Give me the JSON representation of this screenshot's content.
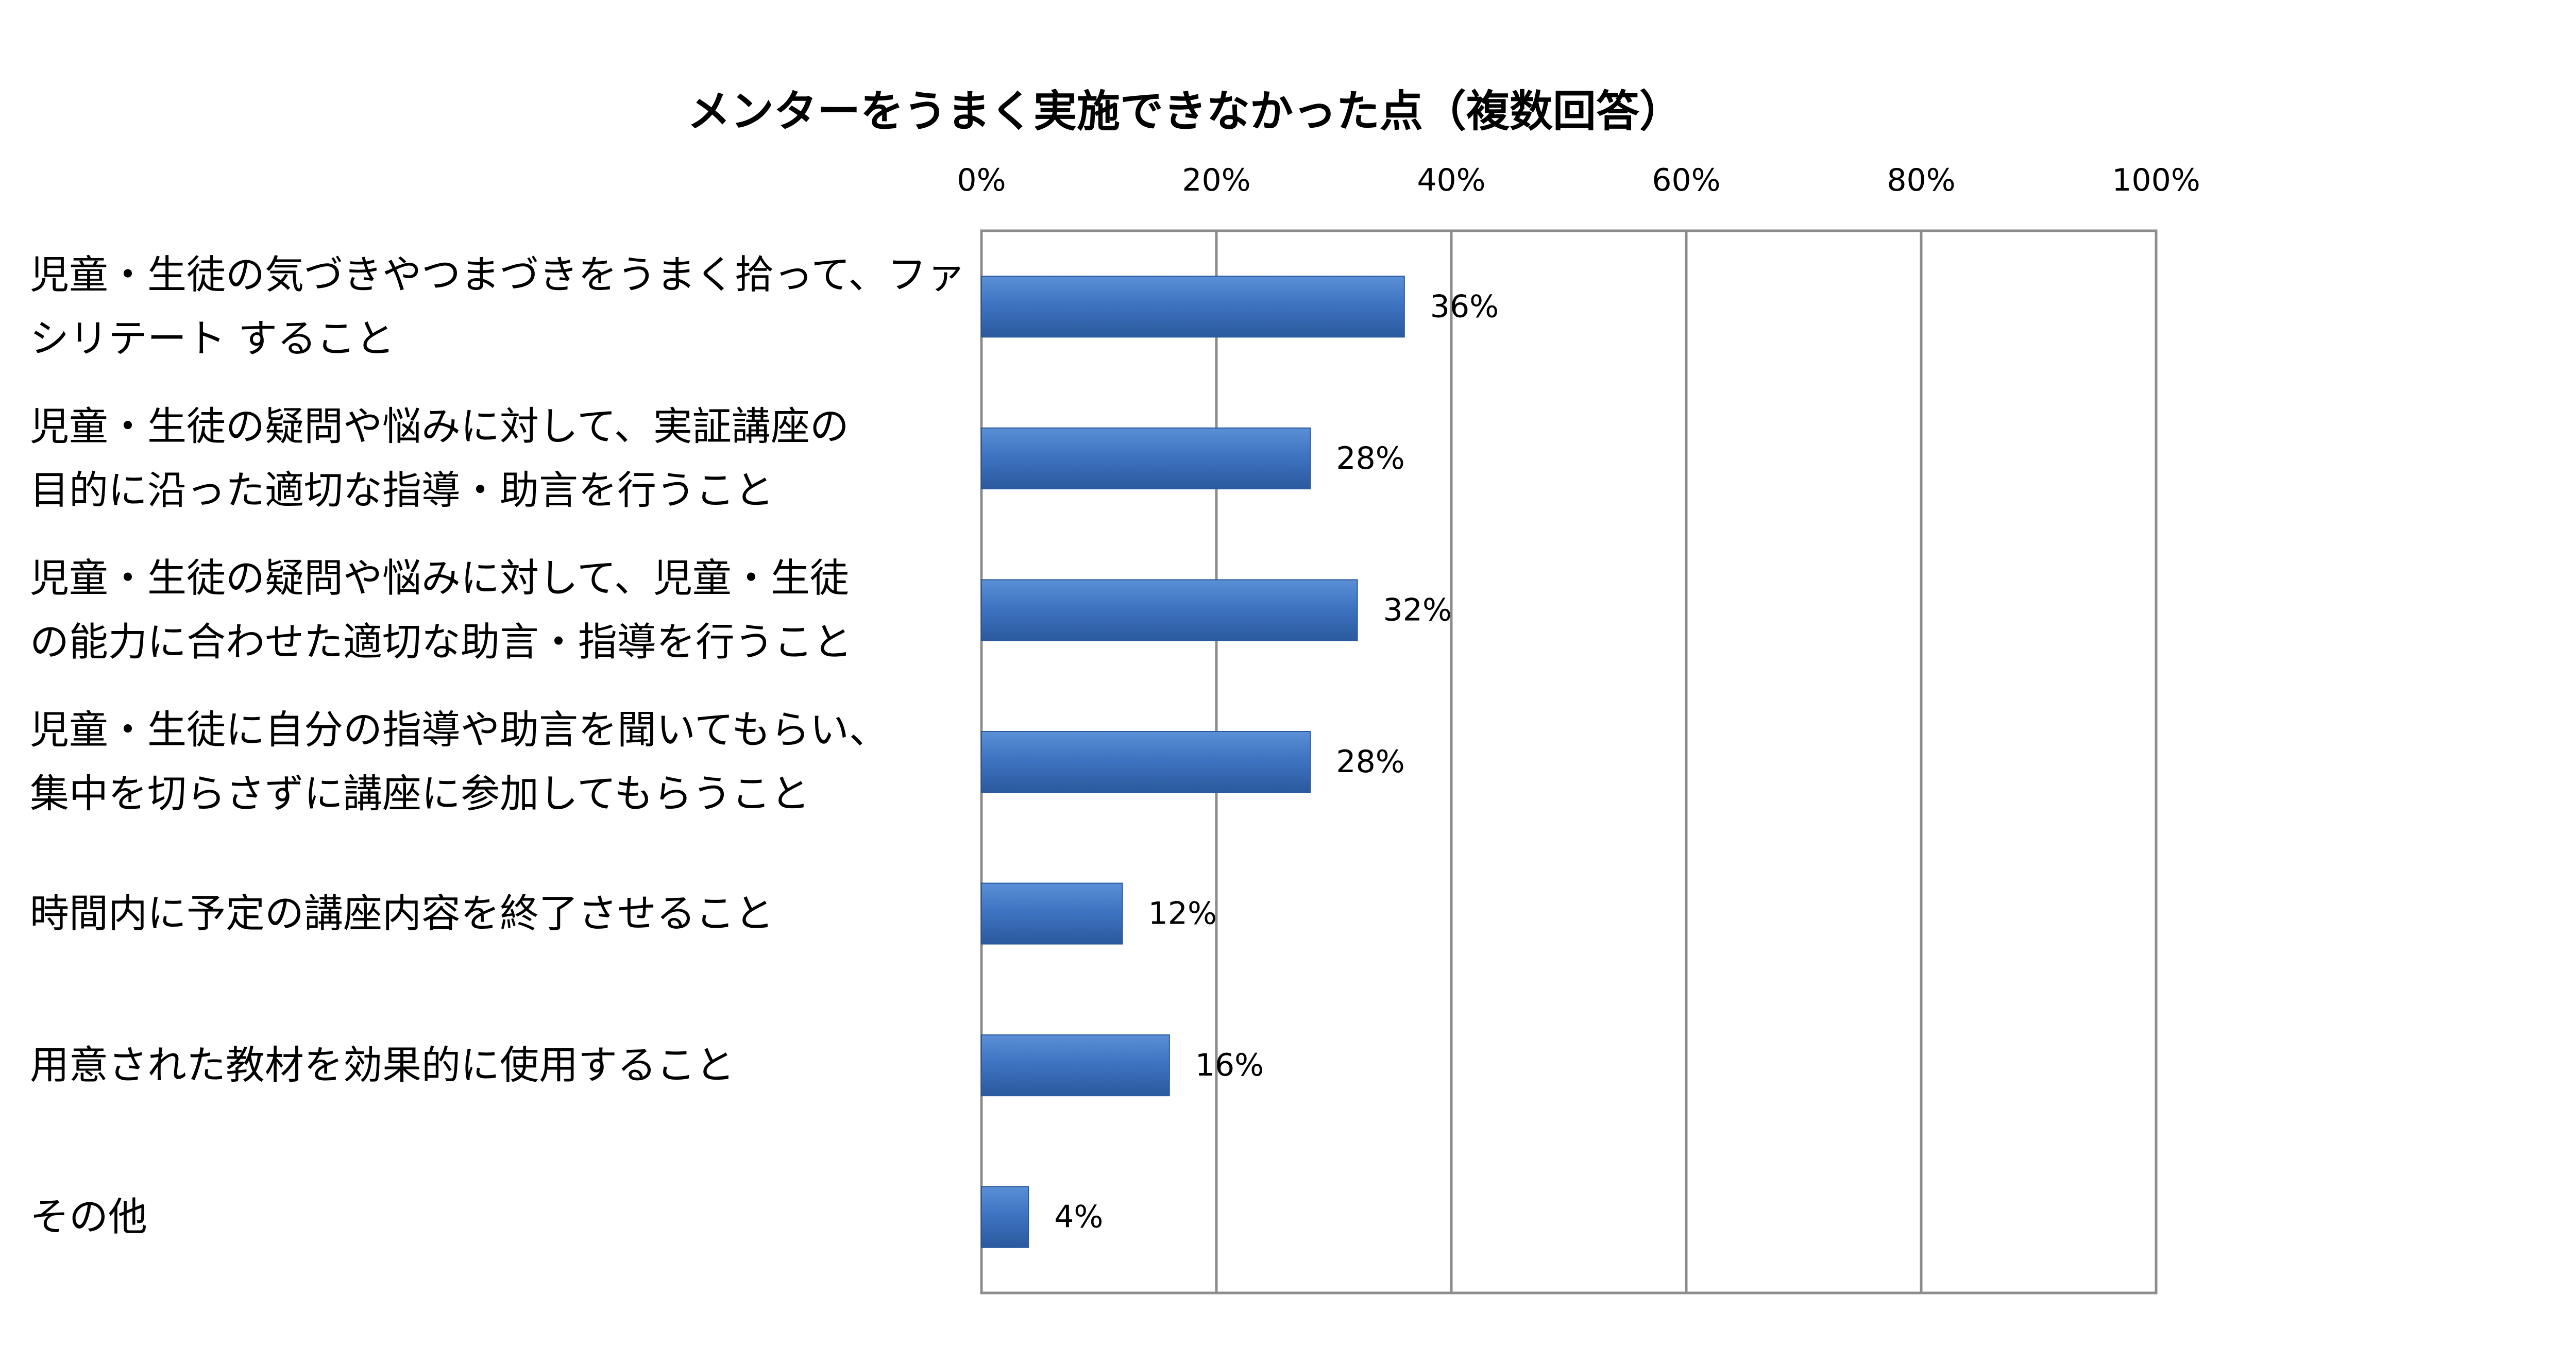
{
  "chart_data": {
    "type": "bar",
    "orientation": "horizontal",
    "title": "メンターをうまく実施できなかった点（複数回答）",
    "xlabel": "",
    "ylabel": "",
    "xlim": [
      0,
      100
    ],
    "x_ticks": [
      "0%",
      "20%",
      "40%",
      "60%",
      "80%",
      "100%"
    ],
    "grid": true,
    "legend": "none",
    "bar_color": "#3e74c2",
    "categories": [
      [
        "児童・生徒の気づきやつまづきをうまく拾って、ファ",
        "シリテート すること"
      ],
      [
        "児童・生徒の疑問や悩みに対して、実証講座の",
        "目的に沿った適切な指導・助言を行うこと"
      ],
      [
        "児童・生徒の疑問や悩みに対して、児童・生徒",
        "の能力に合わせた適切な助言・指導を行うこと"
      ],
      [
        "児童・生徒に自分の指導や助言を聞いてもらい、",
        "集中を切らさずに講座に参加してもらうこと"
      ],
      [
        "時間内に予定の講座内容を終了させること"
      ],
      [
        "用意された教材を効果的に使用すること"
      ],
      [
        "その他"
      ]
    ],
    "values": [
      36,
      28,
      32,
      28,
      12,
      16,
      4
    ],
    "data_labels": [
      "36%",
      "28%",
      "32%",
      "28%",
      "12%",
      "16%",
      "4%"
    ]
  }
}
